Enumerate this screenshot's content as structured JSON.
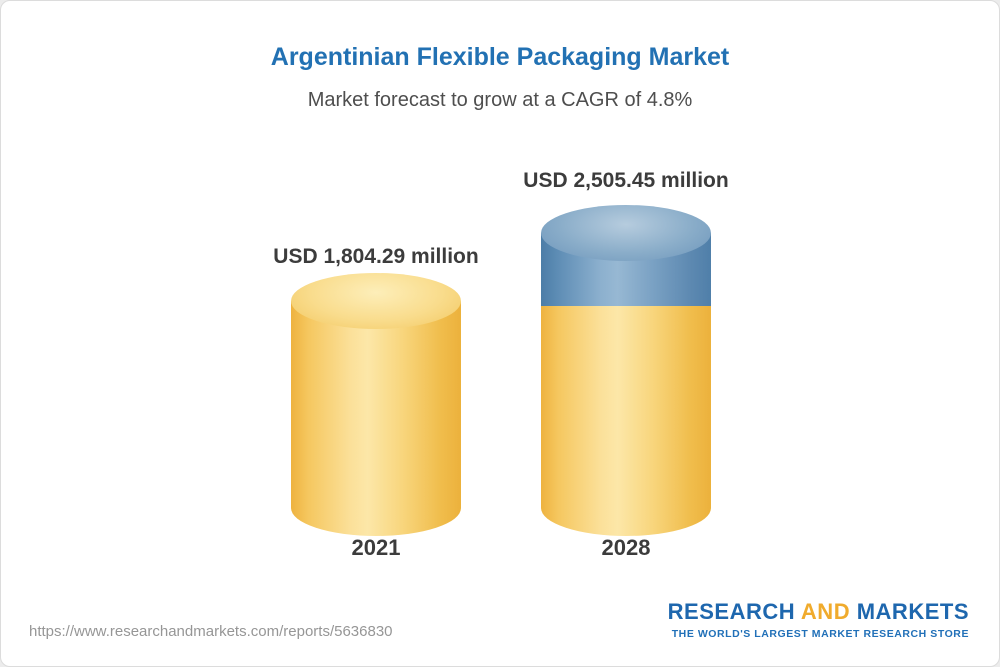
{
  "card": {
    "title": "Argentinian Flexible Packaging Market",
    "subtitle": "Market forecast to grow at a CAGR of 4.8%"
  },
  "chart_data": {
    "type": "bar",
    "title": "Argentinian Flexible Packaging Market",
    "subtitle": "Market forecast to grow at a CAGR of 4.8%",
    "categories": [
      "2021",
      "2028"
    ],
    "values": [
      1804.29,
      2505.45
    ],
    "value_labels": [
      "USD 1,804.29 million",
      "USD 2,505.45 million"
    ],
    "unit": "USD million",
    "cagr_percent": 4.8,
    "xlabel": "",
    "ylabel": "",
    "ylim": [
      0,
      2800
    ],
    "grid": "off",
    "legend": "off",
    "colors": {
      "bar_base": "#F6CB62",
      "bar_growth_segment": "#5E8FBC",
      "title": "#2271B3"
    },
    "notes": "2028 bar shows base value in yellow with incremental growth segment in blue on top"
  },
  "footer": {
    "url": "https://www.researchandmarkets.com/reports/5636830",
    "logo": {
      "part1": "RESEARCH",
      "part2": "AND",
      "part3": "MARKETS",
      "tagline": "THE WORLD'S LARGEST MARKET RESEARCH STORE"
    }
  }
}
